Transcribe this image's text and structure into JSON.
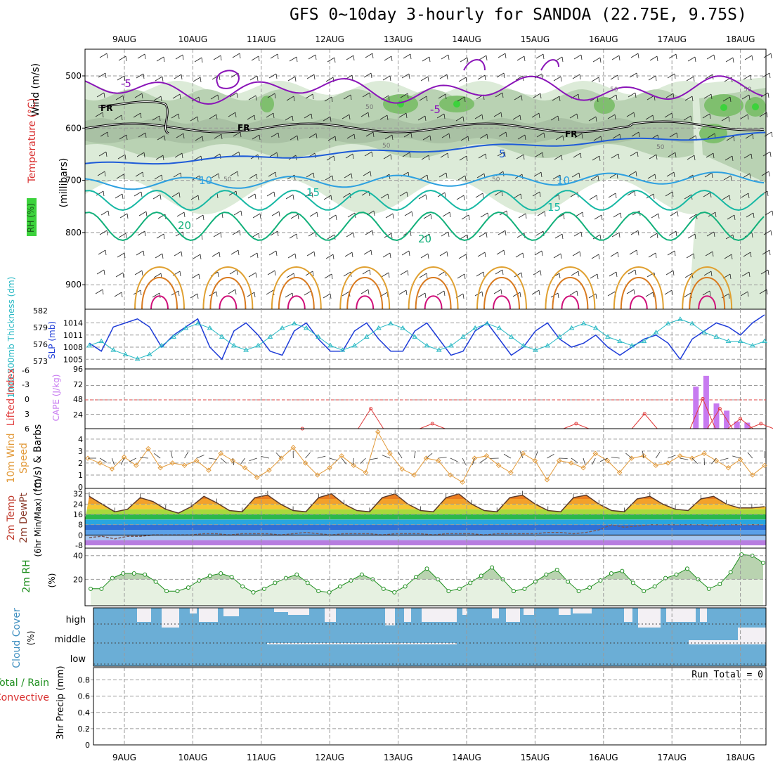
{
  "title": "GFS 0~10day 3-hourly for SANDOA (22.75E, 9.75S)",
  "dates": [
    "9AUG",
    "10AUG",
    "11AUG",
    "12AUG",
    "13AUG",
    "14AUG",
    "15AUG",
    "16AUG",
    "17AUG",
    "18AUG"
  ],
  "colors": {
    "grid": "#9a9a9a",
    "slp": "#1e3cd8",
    "thickness": "#29b9c4",
    "cape": "#c77af0",
    "lifted": "#e03a3a",
    "wind": "#e29a3a",
    "rh_line": "#1f8f1f",
    "rh_fill": "#e6f1e1",
    "cloud": "#6baed6",
    "clear": "#f3f0f4",
    "rh_shade_light": "#dcebd8",
    "rh_shade_mid": "#b9d2b3",
    "rh_shade_dark": "#7fbf6e",
    "rh_shade_green": "#3cd23c"
  },
  "panels": {
    "upper": {
      "ylabel_wind": "Wind (m/s)",
      "ylabel_temp": "Temperature (°C)",
      "ylabel_rh": "RH (%)",
      "ylabel_p": "(millibars)",
      "ticks": [
        "500",
        "600",
        "700",
        "800",
        "900"
      ],
      "labels": {
        "fr": "FR",
        "m5": "-5",
        "p5": "5",
        "p10": "10",
        "p15": "15",
        "p20": "20",
        "rh50": "50"
      }
    },
    "slp": {
      "ylabel_thick": "1000-500mb Thickness (dm)",
      "ylabel_slp": "SLP (mb)",
      "left_ticks": [
        "582",
        "579",
        "576",
        "573"
      ],
      "right_ticks": [
        "1014",
        "1011",
        "1008",
        "1005"
      ]
    },
    "cape": {
      "ylabel_li": "Lifted Index",
      "ylabel_cape": "CAPE (J/kg)",
      "left_ticks": [
        "-6",
        "-3",
        "0",
        "3",
        "6"
      ],
      "right_ticks": [
        "96",
        "72",
        "48",
        "24"
      ]
    },
    "wind": {
      "ylabel_a": "10m Wind",
      "ylabel_b": "Speed",
      "ylabel_c": "(m/s) & Barbs",
      "ticks": [
        "4",
        "3",
        "2",
        "1",
        "0"
      ]
    },
    "temp": {
      "ylabel_a": "2m Temp",
      "ylabel_b": "2m DewPt",
      "ylabel_c": "(6hr Min/Max) (°C)",
      "ticks": [
        "32",
        "24",
        "16",
        "8",
        "0",
        "-8"
      ]
    },
    "rh": {
      "ylabel_a": "2m RH",
      "ylabel_b": "(%)",
      "ticks": [
        "40",
        "20"
      ]
    },
    "cloud": {
      "ylabel_a": "Cloud Cover",
      "ylabel_b": "(%)",
      "levels": [
        "high",
        "middle",
        "low"
      ]
    },
    "precip": {
      "ylabel_a": "Total / Rain",
      "ylabel_b": "Convective",
      "ylabel_c": "3hr Precip (mm)",
      "ticks": [
        "0.8",
        "0.6",
        "0.4",
        "0.2",
        "0"
      ],
      "run_total": "Run Total = 0"
    }
  },
  "chart_data": [
    {
      "type": "line",
      "name": "slp_and_thickness",
      "x_start": "08AUG 12Z",
      "x_step_hours": 6,
      "series": [
        {
          "name": "SLP (mb)",
          "values": [
            1009,
            1007,
            1013,
            1014,
            1015,
            1013,
            1008,
            1011,
            1013,
            1015,
            1008,
            1005,
            1012,
            1014,
            1011,
            1007,
            1006,
            1012,
            1014,
            1010,
            1007,
            1007,
            1012,
            1014,
            1010,
            1007,
            1007,
            1012,
            1014,
            1010,
            1006,
            1007,
            1012,
            1014,
            1010,
            1006,
            1008,
            1012,
            1014,
            1010,
            1008,
            1009,
            1011,
            1008,
            1006,
            1008,
            1010,
            1011,
            1009,
            1005,
            1010,
            1012,
            1014,
            1013,
            1011,
            1014,
            1016
          ]
        },
        {
          "name": "1000-500mb Thickness (dm)",
          "values": [
            576,
            577,
            575,
            574,
            573,
            574,
            576,
            578,
            580,
            581,
            580,
            578,
            576,
            575,
            576,
            578,
            580,
            581,
            580,
            578,
            576,
            575,
            576,
            578,
            580,
            581,
            580,
            578,
            576,
            575,
            576,
            578,
            580,
            581,
            580,
            578,
            576,
            575,
            576,
            578,
            580,
            581,
            580,
            578,
            577,
            576,
            577,
            579,
            581,
            582,
            581,
            579,
            578,
            577,
            577,
            576,
            577
          ]
        }
      ],
      "ylim_left": [
        572,
        583
      ],
      "ylim_right": [
        1004,
        1016
      ]
    },
    {
      "type": "bar",
      "name": "cape_and_lifted_index",
      "series": [
        {
          "name": "CAPE (J/kg)",
          "values": [
            [
              17.35,
              70
            ],
            [
              17.5,
              88
            ],
            [
              17.65,
              42
            ],
            [
              17.8,
              30
            ],
            [
              17.95,
              12
            ],
            [
              18.1,
              10
            ]
          ]
        },
        {
          "name": "Lifted Index",
          "values": [
            [
              11.6,
              6
            ],
            [
              12.6,
              2
            ],
            [
              13.5,
              5
            ],
            [
              15.6,
              5
            ],
            [
              16.6,
              3
            ],
            [
              17.45,
              0
            ],
            [
              17.7,
              2
            ],
            [
              18.0,
              4
            ],
            [
              18.3,
              5
            ]
          ]
        }
      ],
      "ylim_cape": [
        0,
        96
      ],
      "ylim_li": [
        6,
        -6
      ]
    },
    {
      "type": "line",
      "name": "10m_wind_speed",
      "series": [
        {
          "name": "Speed (m/s)",
          "values": [
            2.4,
            2.0,
            1.5,
            2.5,
            1.8,
            3.2,
            1.6,
            2.0,
            1.8,
            2.2,
            1.4,
            2.8,
            2.2,
            1.6,
            0.8,
            1.4,
            2.4,
            3.3,
            2.0,
            1.0,
            1.6,
            2.6,
            1.8,
            1.2,
            4.6,
            2.8,
            1.5,
            1.0,
            2.4,
            2.2,
            1.0,
            0.4,
            2.4,
            2.6,
            1.8,
            1.2,
            2.8,
            2.2,
            0.6,
            2.2,
            2.0,
            1.6,
            2.8,
            2.2,
            1.2,
            2.4,
            2.6,
            1.8,
            2.0,
            2.6,
            2.4,
            2.8,
            2.2,
            1.6,
            2.3,
            1.0,
            1.8
          ]
        }
      ],
      "ylim": [
        0,
        5
      ]
    },
    {
      "type": "area",
      "name": "2m_temperature",
      "series": [
        {
          "name": "2m Temp (°C)",
          "values": [
            30,
            24,
            18,
            20,
            29,
            26,
            20,
            17,
            22,
            30,
            25,
            19,
            18,
            29,
            31,
            24,
            19,
            18,
            29,
            32,
            24,
            19,
            18,
            29,
            32,
            24,
            19,
            18,
            29,
            32,
            24,
            19,
            18,
            29,
            31,
            24,
            19,
            18,
            29,
            31,
            24,
            19,
            18,
            28,
            30,
            24,
            20,
            19,
            28,
            30,
            24,
            21,
            21,
            22
          ]
        },
        {
          "name": "2m DewPt (°C)",
          "values": [
            -2,
            -1,
            -3,
            -1,
            -1,
            0,
            0,
            0,
            0,
            1,
            1,
            0,
            1,
            1,
            1,
            0,
            1,
            2,
            1,
            0,
            1,
            1,
            1,
            0,
            1,
            1,
            1,
            0,
            1,
            1,
            1,
            0,
            1,
            1,
            1,
            1,
            2,
            2,
            1,
            2,
            4,
            8,
            6,
            7,
            8,
            8,
            8,
            8,
            8,
            7,
            8,
            8,
            8,
            8
          ]
        }
      ],
      "ylim": [
        -8,
        36
      ]
    },
    {
      "type": "area",
      "name": "2m_rh",
      "series": [
        {
          "name": "2m RH (%)",
          "values": [
            12,
            12,
            21,
            25,
            25,
            24,
            18,
            10,
            10,
            13,
            19,
            23,
            25,
            22,
            14,
            9,
            12,
            17,
            21,
            24,
            17,
            10,
            9,
            14,
            19,
            24,
            20,
            12,
            9,
            14,
            22,
            29,
            20,
            10,
            12,
            17,
            23,
            30,
            20,
            10,
            12,
            18,
            24,
            28,
            18,
            10,
            13,
            19,
            25,
            27,
            17,
            10,
            14,
            21,
            24,
            29,
            20,
            12,
            16,
            26,
            41,
            40,
            34
          ]
        }
      ],
      "ylim": [
        0,
        44
      ]
    },
    {
      "type": "bar",
      "name": "cloud_cover_3hr_precip",
      "categories": [
        "high",
        "middle",
        "low"
      ],
      "precip_values": [
        0
      ],
      "run_total": 0
    }
  ]
}
